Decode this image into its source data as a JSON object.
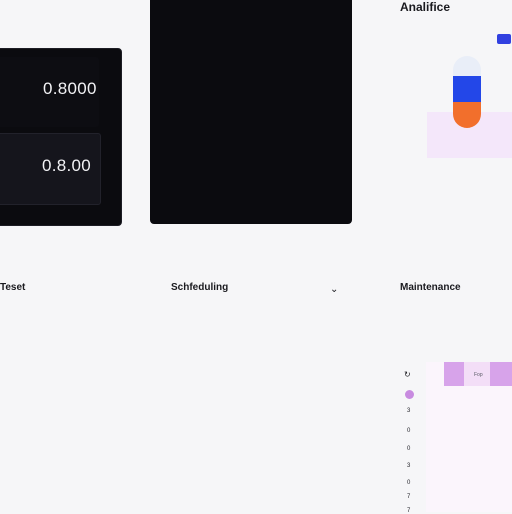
{
  "metric_card": {
    "value_1": "0.8000",
    "value_2": "0.8.00"
  },
  "analytics": {
    "title": "Analifice",
    "colors": {
      "blue": "#2347e8",
      "orange": "#f26f2c",
      "purple_area": "#f4e7fa"
    }
  },
  "text_section": {
    "title": "Teset"
  },
  "scheduling": {
    "title": "Schfeduling"
  },
  "maintenance": {
    "title": "Maintenance",
    "grid_cell_text": "Fop",
    "row_values": [
      "3",
      "0",
      "0",
      "3",
      "0",
      "7",
      "7"
    ]
  },
  "icons": {
    "chevron": "chevron-down-icon",
    "refresh": "refresh-icon"
  }
}
